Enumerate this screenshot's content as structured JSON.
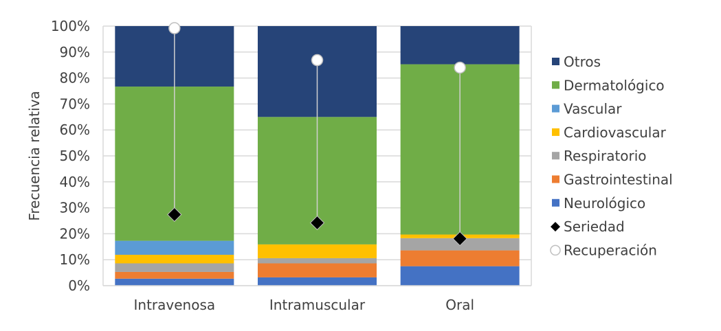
{
  "chart_data": {
    "type": "bar",
    "stacked": true,
    "title": "",
    "xlabel": "",
    "ylabel": "Frecuencia relativa",
    "ylim": [
      0,
      100
    ],
    "yticks": [
      "0%",
      "10%",
      "20%",
      "30%",
      "40%",
      "50%",
      "60%",
      "70%",
      "80%",
      "90%",
      "100%"
    ],
    "grid": true,
    "legend_position": "right",
    "categories": [
      "Intravenosa",
      "Intramuscular",
      "Oral"
    ],
    "series": [
      {
        "name": "Neurológico",
        "color": "#4472C4",
        "values": [
          2.7,
          3.2,
          7.5
        ]
      },
      {
        "name": "Gastrointestinal",
        "color": "#ED7D31",
        "values": [
          2.6,
          5.4,
          6.1
        ]
      },
      {
        "name": "Respiratorio",
        "color": "#A5A5A5",
        "values": [
          3.3,
          2.0,
          4.7
        ]
      },
      {
        "name": "Cardiovascular",
        "color": "#FFC000",
        "values": [
          3.3,
          5.3,
          1.4
        ]
      },
      {
        "name": "Vascular",
        "color": "#5B9BD5",
        "values": [
          5.4,
          0,
          0
        ]
      },
      {
        "name": "Dermatológico",
        "color": "#70AD47",
        "values": [
          59.4,
          49.1,
          65.6
        ]
      },
      {
        "name": "Otros",
        "color": "#264478",
        "values": [
          23.3,
          35.0,
          14.7
        ]
      }
    ],
    "markers": [
      {
        "name": "Seriedad",
        "shape": "diamond",
        "color": "#000000",
        "values": [
          27.4,
          24.2,
          18.1
        ]
      },
      {
        "name": "Recuperación",
        "shape": "circle",
        "color": "#FFFFFF",
        "values": [
          99.2,
          86.9,
          84.0
        ]
      }
    ],
    "legend_order": [
      "Otros",
      "Dermatológico",
      "Vascular",
      "Cardiovascular",
      "Respiratorio",
      "Gastrointestinal",
      "Neurológico",
      "Seriedad",
      "Recuperación"
    ]
  }
}
